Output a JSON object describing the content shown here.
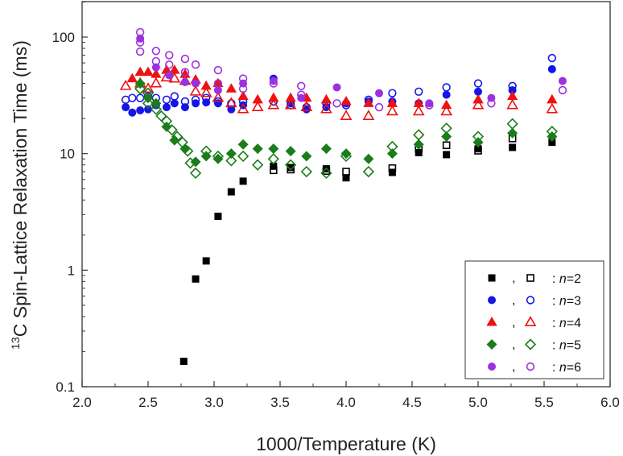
{
  "chart_data": {
    "type": "scatter",
    "title": "",
    "xlabel": "1000/Temperature (K)",
    "ylabel": "C Spin-Lattice Relaxation Time (ms)",
    "ylabel_superscript": "13",
    "xlim": [
      2.0,
      6.0
    ],
    "ylim": [
      0.1,
      200
    ],
    "yscale": "log",
    "x_ticks": [
      "2.0",
      "2.5",
      "3.0",
      "3.5",
      "4.0",
      "4.5",
      "5.0",
      "5.5",
      "6.0"
    ],
    "y_ticks": [
      "0.1",
      "1",
      "10",
      "100"
    ],
    "legend_position": "bottom-right",
    "grid": false,
    "series": [
      {
        "name": "n=2",
        "color": "#000000",
        "marker": "square",
        "filled": [
          [
            2.77,
            0.165
          ],
          [
            2.86,
            0.84
          ],
          [
            2.94,
            1.2
          ],
          [
            3.03,
            2.9
          ],
          [
            3.13,
            4.7
          ],
          [
            3.22,
            5.8
          ],
          [
            3.45,
            7.8
          ],
          [
            3.58,
            7.6
          ],
          [
            3.85,
            7.4
          ],
          [
            4.0,
            6.2
          ],
          [
            4.35,
            6.9
          ],
          [
            4.55,
            10.2
          ],
          [
            4.76,
            9.8
          ],
          [
            5.0,
            11.0
          ],
          [
            5.26,
            11.3
          ],
          [
            5.56,
            12.5
          ]
        ],
        "open": [
          [
            3.45,
            7.2
          ],
          [
            3.58,
            7.3
          ],
          [
            3.85,
            7.1
          ],
          [
            4.0,
            7.0
          ],
          [
            4.35,
            7.5
          ],
          [
            4.55,
            11.0
          ],
          [
            4.76,
            11.8
          ],
          [
            5.0,
            10.6
          ],
          [
            5.26,
            13.5
          ]
        ]
      },
      {
        "name": "n=3",
        "color": "#1515e8",
        "marker": "circle",
        "filled": [
          [
            2.33,
            25
          ],
          [
            2.38,
            22.5
          ],
          [
            2.44,
            23.5
          ],
          [
            2.5,
            24
          ],
          [
            2.56,
            26
          ],
          [
            2.64,
            25
          ],
          [
            2.7,
            27
          ],
          [
            2.78,
            25
          ],
          [
            2.86,
            27
          ],
          [
            2.94,
            27.5
          ],
          [
            3.03,
            27
          ],
          [
            3.13,
            24
          ],
          [
            3.22,
            26
          ],
          [
            3.45,
            44
          ],
          [
            3.58,
            27
          ],
          [
            3.7,
            24
          ],
          [
            3.85,
            25
          ],
          [
            4.0,
            27
          ],
          [
            4.17,
            28
          ],
          [
            4.35,
            28
          ],
          [
            4.55,
            27
          ],
          [
            4.76,
            32
          ],
          [
            5.0,
            34
          ],
          [
            5.26,
            35
          ],
          [
            5.56,
            53
          ]
        ],
        "open": [
          [
            2.33,
            29
          ],
          [
            2.38,
            30
          ],
          [
            2.44,
            30
          ],
          [
            2.5,
            31
          ],
          [
            2.56,
            30
          ],
          [
            2.64,
            29
          ],
          [
            2.7,
            31
          ],
          [
            2.78,
            28
          ],
          [
            2.86,
            29
          ],
          [
            2.94,
            30
          ],
          [
            3.03,
            28
          ],
          [
            3.13,
            27
          ],
          [
            3.22,
            28
          ],
          [
            3.45,
            28
          ],
          [
            3.58,
            26
          ],
          [
            3.7,
            25
          ],
          [
            3.85,
            27
          ],
          [
            4.0,
            26
          ],
          [
            4.17,
            29
          ],
          [
            4.35,
            33
          ],
          [
            4.55,
            34
          ],
          [
            4.76,
            37
          ],
          [
            5.0,
            40
          ],
          [
            5.26,
            38
          ],
          [
            5.56,
            66
          ]
        ]
      },
      {
        "name": "n=4",
        "color": "#ee1111",
        "marker": "triangle",
        "filled": [
          [
            2.38,
            44
          ],
          [
            2.44,
            50
          ],
          [
            2.5,
            50
          ],
          [
            2.56,
            48
          ],
          [
            2.64,
            52
          ],
          [
            2.7,
            52
          ],
          [
            2.78,
            48
          ],
          [
            2.86,
            43
          ],
          [
            2.94,
            38
          ],
          [
            3.03,
            40
          ],
          [
            3.13,
            36
          ],
          [
            3.22,
            31
          ],
          [
            3.33,
            29
          ],
          [
            3.45,
            30
          ],
          [
            3.58,
            30
          ],
          [
            3.7,
            30
          ],
          [
            3.85,
            29
          ],
          [
            4.0,
            28
          ],
          [
            4.17,
            27
          ],
          [
            4.35,
            27
          ],
          [
            4.55,
            27
          ],
          [
            4.76,
            26
          ],
          [
            5.0,
            29
          ],
          [
            5.26,
            31
          ],
          [
            5.56,
            29
          ]
        ],
        "open": [
          [
            2.33,
            38
          ],
          [
            2.44,
            40
          ],
          [
            2.5,
            36
          ],
          [
            2.56,
            40
          ],
          [
            2.64,
            45
          ],
          [
            2.7,
            44
          ],
          [
            2.78,
            42
          ],
          [
            2.86,
            34
          ],
          [
            2.94,
            33
          ],
          [
            3.03,
            30
          ],
          [
            3.13,
            27
          ],
          [
            3.22,
            24
          ],
          [
            3.33,
            25
          ],
          [
            3.45,
            26
          ],
          [
            3.58,
            26
          ],
          [
            3.7,
            25
          ],
          [
            3.85,
            24
          ],
          [
            4.0,
            21
          ],
          [
            4.17,
            21
          ],
          [
            4.35,
            23
          ],
          [
            4.55,
            23
          ],
          [
            4.76,
            23
          ],
          [
            5.0,
            26
          ],
          [
            5.26,
            26
          ],
          [
            5.56,
            24
          ]
        ]
      },
      {
        "name": "n=5",
        "color": "#1a7d1a",
        "marker": "diamond",
        "filled": [
          [
            2.44,
            40
          ],
          [
            2.5,
            30
          ],
          [
            2.56,
            27
          ],
          [
            2.64,
            17
          ],
          [
            2.7,
            13
          ],
          [
            2.78,
            11
          ],
          [
            2.86,
            8.5
          ],
          [
            2.94,
            9.5
          ],
          [
            3.03,
            9.0
          ],
          [
            3.13,
            10
          ],
          [
            3.22,
            12
          ],
          [
            3.33,
            11
          ],
          [
            3.45,
            11
          ],
          [
            3.58,
            10.5
          ],
          [
            3.7,
            9.5
          ],
          [
            3.85,
            11
          ],
          [
            4.0,
            10
          ],
          [
            4.17,
            9
          ],
          [
            4.35,
            10
          ],
          [
            4.55,
            12
          ],
          [
            4.76,
            14
          ],
          [
            5.0,
            12.5
          ],
          [
            5.26,
            15
          ],
          [
            5.56,
            14
          ]
        ],
        "open": [
          [
            2.44,
            36
          ],
          [
            2.5,
            33
          ],
          [
            2.5,
            27
          ],
          [
            2.56,
            24
          ],
          [
            2.6,
            21
          ],
          [
            2.64,
            19
          ],
          [
            2.68,
            16
          ],
          [
            2.72,
            14
          ],
          [
            2.76,
            12.5
          ],
          [
            2.8,
            10.5
          ],
          [
            2.82,
            8.3
          ],
          [
            2.86,
            6.8
          ],
          [
            2.94,
            10.5
          ],
          [
            3.03,
            9.5
          ],
          [
            3.13,
            8.7
          ],
          [
            3.22,
            9.5
          ],
          [
            3.33,
            8.0
          ],
          [
            3.45,
            9.0
          ],
          [
            3.58,
            8.0
          ],
          [
            3.7,
            7.0
          ],
          [
            3.85,
            6.8
          ],
          [
            4.0,
            9.5
          ],
          [
            4.17,
            7.0
          ],
          [
            4.35,
            11.5
          ],
          [
            4.55,
            14.5
          ],
          [
            4.76,
            16.5
          ],
          [
            5.0,
            14
          ],
          [
            5.26,
            18
          ],
          [
            5.56,
            15.5
          ]
        ]
      },
      {
        "name": "n=6",
        "color": "#9b30e0",
        "marker": "circle",
        "filled": [
          [
            2.44,
            97
          ],
          [
            2.56,
            55
          ],
          [
            2.66,
            47
          ],
          [
            2.78,
            41
          ],
          [
            2.86,
            40
          ],
          [
            3.03,
            35
          ],
          [
            3.22,
            40
          ],
          [
            3.45,
            42
          ],
          [
            3.66,
            30
          ],
          [
            3.93,
            37
          ],
          [
            4.25,
            33
          ],
          [
            4.63,
            27
          ],
          [
            5.1,
            30
          ],
          [
            5.64,
            42
          ]
        ],
        "open": [
          [
            2.44,
            110
          ],
          [
            2.44,
            90
          ],
          [
            2.44,
            75
          ],
          [
            2.56,
            76
          ],
          [
            2.56,
            62
          ],
          [
            2.66,
            70
          ],
          [
            2.66,
            58
          ],
          [
            2.78,
            65
          ],
          [
            2.78,
            50
          ],
          [
            2.86,
            58
          ],
          [
            3.03,
            52
          ],
          [
            3.03,
            40
          ],
          [
            3.22,
            44
          ],
          [
            3.22,
            36
          ],
          [
            3.45,
            40
          ],
          [
            3.66,
            38
          ],
          [
            3.66,
            32
          ],
          [
            3.93,
            27
          ],
          [
            4.25,
            25
          ],
          [
            4.63,
            26
          ],
          [
            5.1,
            27
          ],
          [
            5.64,
            35
          ]
        ]
      }
    ],
    "legend": [
      {
        "separator": ",",
        "label_prefix": ": ",
        "label_italic": "n",
        "label_rest": "=2"
      },
      {
        "separator": ",",
        "label_prefix": ": ",
        "label_italic": "n",
        "label_rest": "=3"
      },
      {
        "separator": ",",
        "label_prefix": ": ",
        "label_italic": "n",
        "label_rest": "=4"
      },
      {
        "separator": ",",
        "label_prefix": ": ",
        "label_italic": "n",
        "label_rest": "=5"
      },
      {
        "separator": ",",
        "label_prefix": ": ",
        "label_italic": "n",
        "label_rest": "=6"
      }
    ]
  }
}
